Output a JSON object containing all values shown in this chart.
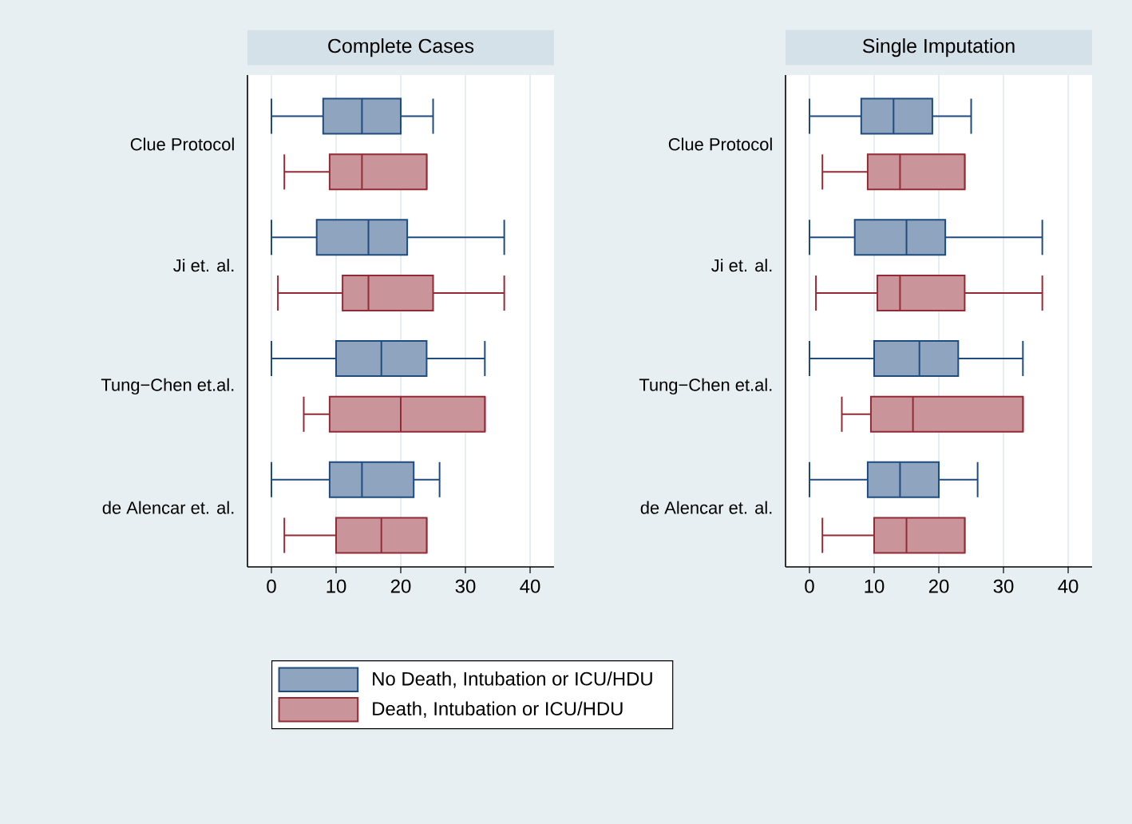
{
  "chart_data": [
    {
      "type": "box",
      "title": "Complete Cases",
      "orientation": "horizontal",
      "categories": [
        "Clue Protocol",
        "Ji et. al.",
        "Tung−Chen et.al.",
        "de Alencar et. al."
      ],
      "xlim": [
        -3.7,
        43.7
      ],
      "xticks": [
        0,
        10,
        20,
        30,
        40
      ],
      "grid": "x",
      "legend": "bottom",
      "series": [
        {
          "name": "No Death, Intubation or ICU/HDU",
          "color": "#8fa5bf",
          "boxes": [
            {
              "low": 0,
              "q1": 8,
              "median": 14,
              "q3": 20,
              "high": 25
            },
            {
              "low": 0,
              "q1": 7,
              "median": 15,
              "q3": 21,
              "high": 36
            },
            {
              "low": 0,
              "q1": 10,
              "median": 17,
              "q3": 24,
              "high": 33
            },
            {
              "low": 0,
              "q1": 9,
              "median": 14,
              "q3": 22,
              "high": 26
            }
          ]
        },
        {
          "name": "Death, Intubation or ICU/HDU",
          "color": "#c9959b",
          "boxes": [
            {
              "low": 2,
              "q1": 9,
              "median": 14,
              "q3": 24,
              "high": 24
            },
            {
              "low": 1,
              "q1": 11,
              "median": 15,
              "q3": 25,
              "high": 36
            },
            {
              "low": 5,
              "q1": 9,
              "median": 20,
              "q3": 33,
              "high": 33
            },
            {
              "low": 2,
              "q1": 10,
              "median": 17,
              "q3": 24,
              "high": 24
            }
          ]
        }
      ]
    },
    {
      "type": "box",
      "title": "Single Imputation",
      "orientation": "horizontal",
      "categories": [
        "Clue Protocol",
        "Ji et. al.",
        "Tung−Chen et.al.",
        "de Alencar et. al."
      ],
      "xlim": [
        -3.7,
        43.7
      ],
      "xticks": [
        0,
        10,
        20,
        30,
        40
      ],
      "grid": "x",
      "series": [
        {
          "color": "#8fa5bf",
          "boxes": [
            {
              "low": 0,
              "q1": 8,
              "median": 13,
              "q3": 19,
              "high": 25
            },
            {
              "low": 0,
              "q1": 7,
              "median": 15,
              "q3": 21,
              "high": 36
            },
            {
              "low": 0,
              "q1": 10,
              "median": 17,
              "q3": 23,
              "high": 33
            },
            {
              "low": 0,
              "q1": 9,
              "median": 14,
              "q3": 20,
              "high": 26
            }
          ]
        },
        {
          "color": "#c9959b",
          "boxes": [
            {
              "low": 2,
              "q1": 9,
              "median": 14,
              "q3": 24,
              "high": 24
            },
            {
              "low": 1,
              "q1": 10.5,
              "median": 14,
              "q3": 24,
              "high": 36
            },
            {
              "low": 5,
              "q1": 9.5,
              "median": 16,
              "q3": 33,
              "high": 33
            },
            {
              "low": 2,
              "q1": 10,
              "median": 15,
              "q3": 24,
              "high": 24
            }
          ]
        }
      ]
    }
  ]
}
